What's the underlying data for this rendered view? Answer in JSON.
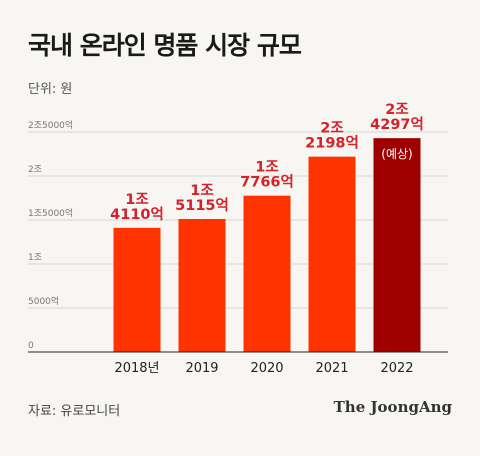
{
  "header": {
    "title": "국내 온라인 명품 시장 규모",
    "unit": "단위: 원"
  },
  "footer": {
    "source": "자료: 유로모니터",
    "brand": "The JoongAng"
  },
  "colors": {
    "bar": "#ff3300",
    "bar_forecast": "#9e0000",
    "label": "#d4222b",
    "grid": "#d7d7d7",
    "axis": "#222222"
  },
  "chart_data": {
    "type": "bar",
    "title": "국내 온라인 명품 시장 규모",
    "unit": "단위: 원",
    "categories": [
      "2018년",
      "2019",
      "2020",
      "2021",
      "2022"
    ],
    "values": [
      14110,
      15115,
      17766,
      22198,
      24297
    ],
    "value_labels": [
      [
        "1조",
        "4110억"
      ],
      [
        "1조",
        "5115억"
      ],
      [
        "1조",
        "7766억"
      ],
      [
        "2조",
        "2198억"
      ],
      [
        "2조",
        "4297억"
      ]
    ],
    "annotations": [
      {
        "index": 4,
        "text": "(예상)"
      }
    ],
    "forecast_index": 4,
    "yticks": [
      {
        "value": 0,
        "label": "0"
      },
      {
        "value": 5000,
        "label": "5000억"
      },
      {
        "value": 10000,
        "label": "1조"
      },
      {
        "value": 15000,
        "label": "1조5000억"
      },
      {
        "value": 20000,
        "label": "2조"
      },
      {
        "value": 25000,
        "label": "2조5000억"
      }
    ],
    "ylim": [
      0,
      25000
    ],
    "grid": true,
    "legend": "none"
  }
}
